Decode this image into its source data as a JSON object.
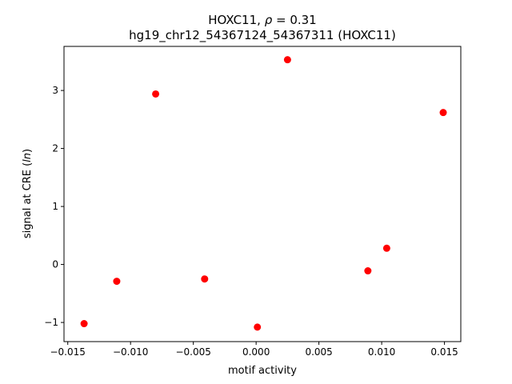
{
  "chart_data": {
    "type": "scatter",
    "title_line1_prefix": "HOXC11, ",
    "title_rho_symbol": "ρ",
    "title_rho_value": " = 0.31",
    "title_line2": "hg19_chr12_54367124_54367311 (HOXC11)",
    "xlabel": "motif activity",
    "ylabel_prefix": "signal at CRE (",
    "ylabel_italic": "ln",
    "ylabel_suffix": ")",
    "xlim": [
      -0.0153,
      0.0163
    ],
    "ylim": [
      -1.33,
      3.76
    ],
    "xticks": [
      -0.015,
      -0.01,
      -0.005,
      0.0,
      0.005,
      0.01,
      0.015
    ],
    "xtick_labels": [
      "−0.015",
      "−0.010",
      "−0.005",
      "0.000",
      "0.005",
      "0.010",
      "0.015"
    ],
    "yticks": [
      -1,
      0,
      1,
      2,
      3
    ],
    "ytick_labels": [
      "−1",
      "0",
      "1",
      "2",
      "3"
    ],
    "grid": false,
    "marker_color": "#ff0000",
    "points": [
      {
        "x": -0.0137,
        "y": -1.02
      },
      {
        "x": -0.0111,
        "y": -0.29
      },
      {
        "x": -0.008,
        "y": 2.94
      },
      {
        "x": -0.0041,
        "y": -0.25
      },
      {
        "x": 0.0001,
        "y": -1.08
      },
      {
        "x": 0.0025,
        "y": 3.53
      },
      {
        "x": 0.0089,
        "y": -0.11
      },
      {
        "x": 0.0104,
        "y": 0.28
      },
      {
        "x": 0.0149,
        "y": 2.62
      }
    ]
  }
}
